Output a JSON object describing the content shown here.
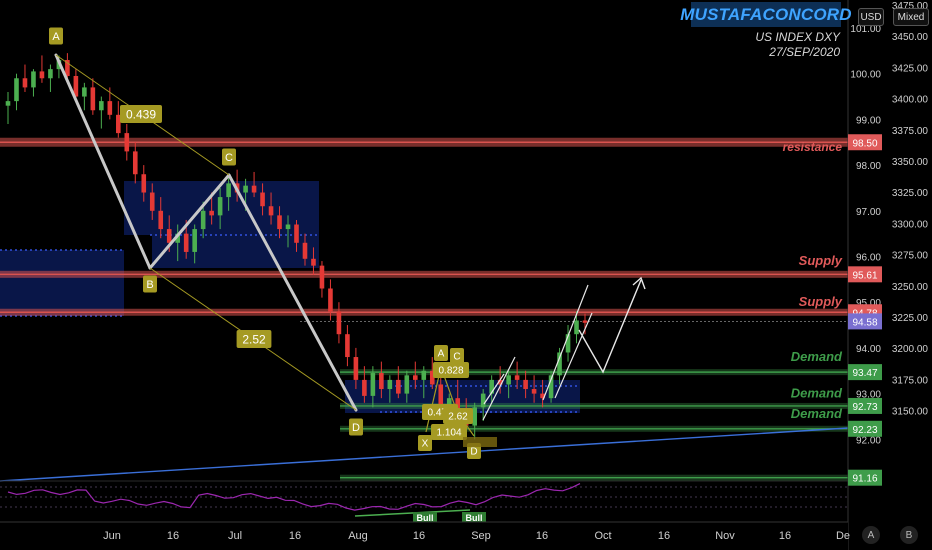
{
  "brand": "MUSTAFACONCORD",
  "subtitle_line1": "US INDEX DXY",
  "subtitle_line2": "27/SEP/2020",
  "controls": {
    "currency": "USD",
    "scale_mode": "Mixed",
    "btn_a": "A",
    "btn_b": "B"
  },
  "colors": {
    "up": "#4caf50",
    "down": "#e53935",
    "resistance": "#d9534f",
    "demand": "#4caf50",
    "trendline": "#3a6fd8",
    "harmonic": "#b0b0b0",
    "label_box": "#a59a23",
    "rsi": "#9c27b0"
  },
  "chart_data": {
    "type": "candlestick",
    "y_ticks_left": [
      "101.00",
      "100.00",
      "99.00",
      "98.00",
      "97.00",
      "96.00",
      "95.00",
      "94.00",
      "93.00",
      "92.00"
    ],
    "y_ticks_right": [
      "3475.00",
      "3450.00",
      "3425.00",
      "3400.00",
      "3375.00",
      "3350.00",
      "3325.00",
      "3300.00",
      "3275.00",
      "3250.00",
      "3225.00",
      "3200.00",
      "3175.00",
      "3150.00"
    ],
    "x_ticks": [
      "Jun",
      "16",
      "Jul",
      "16",
      "Aug",
      "16",
      "Sep",
      "16",
      "Oct",
      "16",
      "Nov",
      "16",
      "De"
    ],
    "price_badges": [
      {
        "value": "98.50",
        "color": "#e05a5a"
      },
      {
        "value": "95.61",
        "color": "#e05a5a"
      },
      {
        "value": "94.78",
        "color": "#e05a5a"
      },
      {
        "value": "94.58",
        "color": "#7a6fd0"
      },
      {
        "value": "93.47",
        "color": "#3e9c4a"
      },
      {
        "value": "92.73",
        "color": "#3e9c4a"
      },
      {
        "value": "92.23",
        "color": "#3e9c4a"
      },
      {
        "value": "91.16",
        "color": "#3e9c4a"
      }
    ],
    "zone_labels": [
      {
        "text": "resistance",
        "price": 98.4,
        "color": "#e05a5a"
      },
      {
        "text": "Supply",
        "price": 95.9,
        "color": "#e05a5a"
      },
      {
        "text": "Supply",
        "price": 95.0,
        "color": "#e05a5a"
      },
      {
        "text": "Demand",
        "price": 93.8,
        "color": "#3e9c4a"
      },
      {
        "text": "Demand",
        "price": 93.0,
        "color": "#3e9c4a"
      },
      {
        "text": "Demand",
        "price": 92.55,
        "color": "#3e9c4a"
      }
    ],
    "lines": [
      {
        "price": 98.5,
        "color": "#d9534f",
        "type": "resistance"
      },
      {
        "price": 95.61,
        "color": "#d9534f",
        "type": "supply"
      },
      {
        "price": 94.78,
        "color": "#d9534f",
        "type": "supply"
      },
      {
        "price": 93.47,
        "color": "#3e9c4a",
        "type": "demand"
      },
      {
        "price": 92.73,
        "color": "#3e9c4a",
        "type": "demand"
      },
      {
        "price": 92.23,
        "color": "#3e9c4a",
        "type": "demand"
      },
      {
        "price": 91.16,
        "color": "#3e9c4a",
        "type": "demand"
      }
    ],
    "pattern_points": [
      {
        "label": "A",
        "price": 100.4
      },
      {
        "label": "B",
        "price": 95.85
      },
      {
        "label": "C",
        "price": 97.85
      },
      {
        "label": "D",
        "price": 92.65
      }
    ],
    "ratios": [
      "0.439",
      "2.52"
    ],
    "small_pattern_labels": [
      "A",
      "C",
      "0.828",
      "0.478",
      "2.62",
      "1.104",
      "X",
      "D"
    ],
    "rsi_labels": [
      "Bull",
      "Bull"
    ],
    "ohlc": [
      [
        99.3,
        99.6,
        98.9,
        99.4
      ],
      [
        99.4,
        100.0,
        99.2,
        99.9
      ],
      [
        99.9,
        100.2,
        99.6,
        99.7
      ],
      [
        99.7,
        100.1,
        99.5,
        100.05
      ],
      [
        100.05,
        100.4,
        99.8,
        99.9
      ],
      [
        99.9,
        100.2,
        99.6,
        100.1
      ],
      [
        100.1,
        100.4,
        99.9,
        100.3
      ],
      [
        100.3,
        100.45,
        99.8,
        99.95
      ],
      [
        99.95,
        100.1,
        99.4,
        99.5
      ],
      [
        99.5,
        99.8,
        99.2,
        99.7
      ],
      [
        99.7,
        99.9,
        99.1,
        99.2
      ],
      [
        99.2,
        99.5,
        98.8,
        99.4
      ],
      [
        99.4,
        99.7,
        99.0,
        99.1
      ],
      [
        99.1,
        99.4,
        98.6,
        98.7
      ],
      [
        98.7,
        98.9,
        98.1,
        98.3
      ],
      [
        98.3,
        98.5,
        97.6,
        97.8
      ],
      [
        97.8,
        98.0,
        97.2,
        97.4
      ],
      [
        97.4,
        97.6,
        96.8,
        97.0
      ],
      [
        97.0,
        97.3,
        96.4,
        96.6
      ],
      [
        96.6,
        96.9,
        96.1,
        96.3
      ],
      [
        96.3,
        96.7,
        95.9,
        96.5
      ],
      [
        96.5,
        96.8,
        95.95,
        96.1
      ],
      [
        96.1,
        96.7,
        95.85,
        96.6
      ],
      [
        96.6,
        97.2,
        96.4,
        97.0
      ],
      [
        97.0,
        97.4,
        96.7,
        96.9
      ],
      [
        96.9,
        97.5,
        96.6,
        97.3
      ],
      [
        97.3,
        97.8,
        97.0,
        97.6
      ],
      [
        97.6,
        97.9,
        97.2,
        97.4
      ],
      [
        97.4,
        97.7,
        97.0,
        97.55
      ],
      [
        97.55,
        97.85,
        97.3,
        97.4
      ],
      [
        97.4,
        97.6,
        96.9,
        97.1
      ],
      [
        97.1,
        97.4,
        96.7,
        96.9
      ],
      [
        96.9,
        97.1,
        96.4,
        96.6
      ],
      [
        96.6,
        96.9,
        96.2,
        96.7
      ],
      [
        96.7,
        96.8,
        96.1,
        96.3
      ],
      [
        96.3,
        96.5,
        95.8,
        95.95
      ],
      [
        95.95,
        96.2,
        95.6,
        95.8
      ],
      [
        95.8,
        95.9,
        95.1,
        95.3
      ],
      [
        95.3,
        95.5,
        94.6,
        94.8
      ],
      [
        94.8,
        95.0,
        94.1,
        94.3
      ],
      [
        94.3,
        94.5,
        93.6,
        93.8
      ],
      [
        93.8,
        94.0,
        93.1,
        93.3
      ],
      [
        93.3,
        93.6,
        92.8,
        92.95
      ],
      [
        92.95,
        93.6,
        92.7,
        93.45
      ],
      [
        93.45,
        93.7,
        92.9,
        93.1
      ],
      [
        93.1,
        93.4,
        92.8,
        93.3
      ],
      [
        93.3,
        93.6,
        92.9,
        93.0
      ],
      [
        93.0,
        93.5,
        92.8,
        93.4
      ],
      [
        93.4,
        93.7,
        93.1,
        93.3
      ],
      [
        93.3,
        93.6,
        92.9,
        93.5
      ],
      [
        93.5,
        93.8,
        93.1,
        93.2
      ],
      [
        93.2,
        93.4,
        92.5,
        92.7
      ],
      [
        92.7,
        93.0,
        92.2,
        92.9
      ],
      [
        92.9,
        93.3,
        92.5,
        92.6
      ],
      [
        92.6,
        92.9,
        92.1,
        92.3
      ],
      [
        92.3,
        92.8,
        92.0,
        92.7
      ],
      [
        92.7,
        93.1,
        92.4,
        93.0
      ],
      [
        93.0,
        93.4,
        92.8,
        93.3
      ],
      [
        93.3,
        93.6,
        93.0,
        93.2
      ],
      [
        93.2,
        93.5,
        92.9,
        93.4
      ],
      [
        93.4,
        93.7,
        93.1,
        93.3
      ],
      [
        93.3,
        93.5,
        92.9,
        93.1
      ],
      [
        93.1,
        93.4,
        92.8,
        93.0
      ],
      [
        93.0,
        93.3,
        92.7,
        92.9
      ],
      [
        92.9,
        93.5,
        92.8,
        93.4
      ],
      [
        93.4,
        94.0,
        93.2,
        93.9
      ],
      [
        93.9,
        94.5,
        93.7,
        94.3
      ],
      [
        94.3,
        94.8,
        94.1,
        94.6
      ],
      [
        94.6,
        94.75,
        94.3,
        94.55
      ]
    ]
  }
}
